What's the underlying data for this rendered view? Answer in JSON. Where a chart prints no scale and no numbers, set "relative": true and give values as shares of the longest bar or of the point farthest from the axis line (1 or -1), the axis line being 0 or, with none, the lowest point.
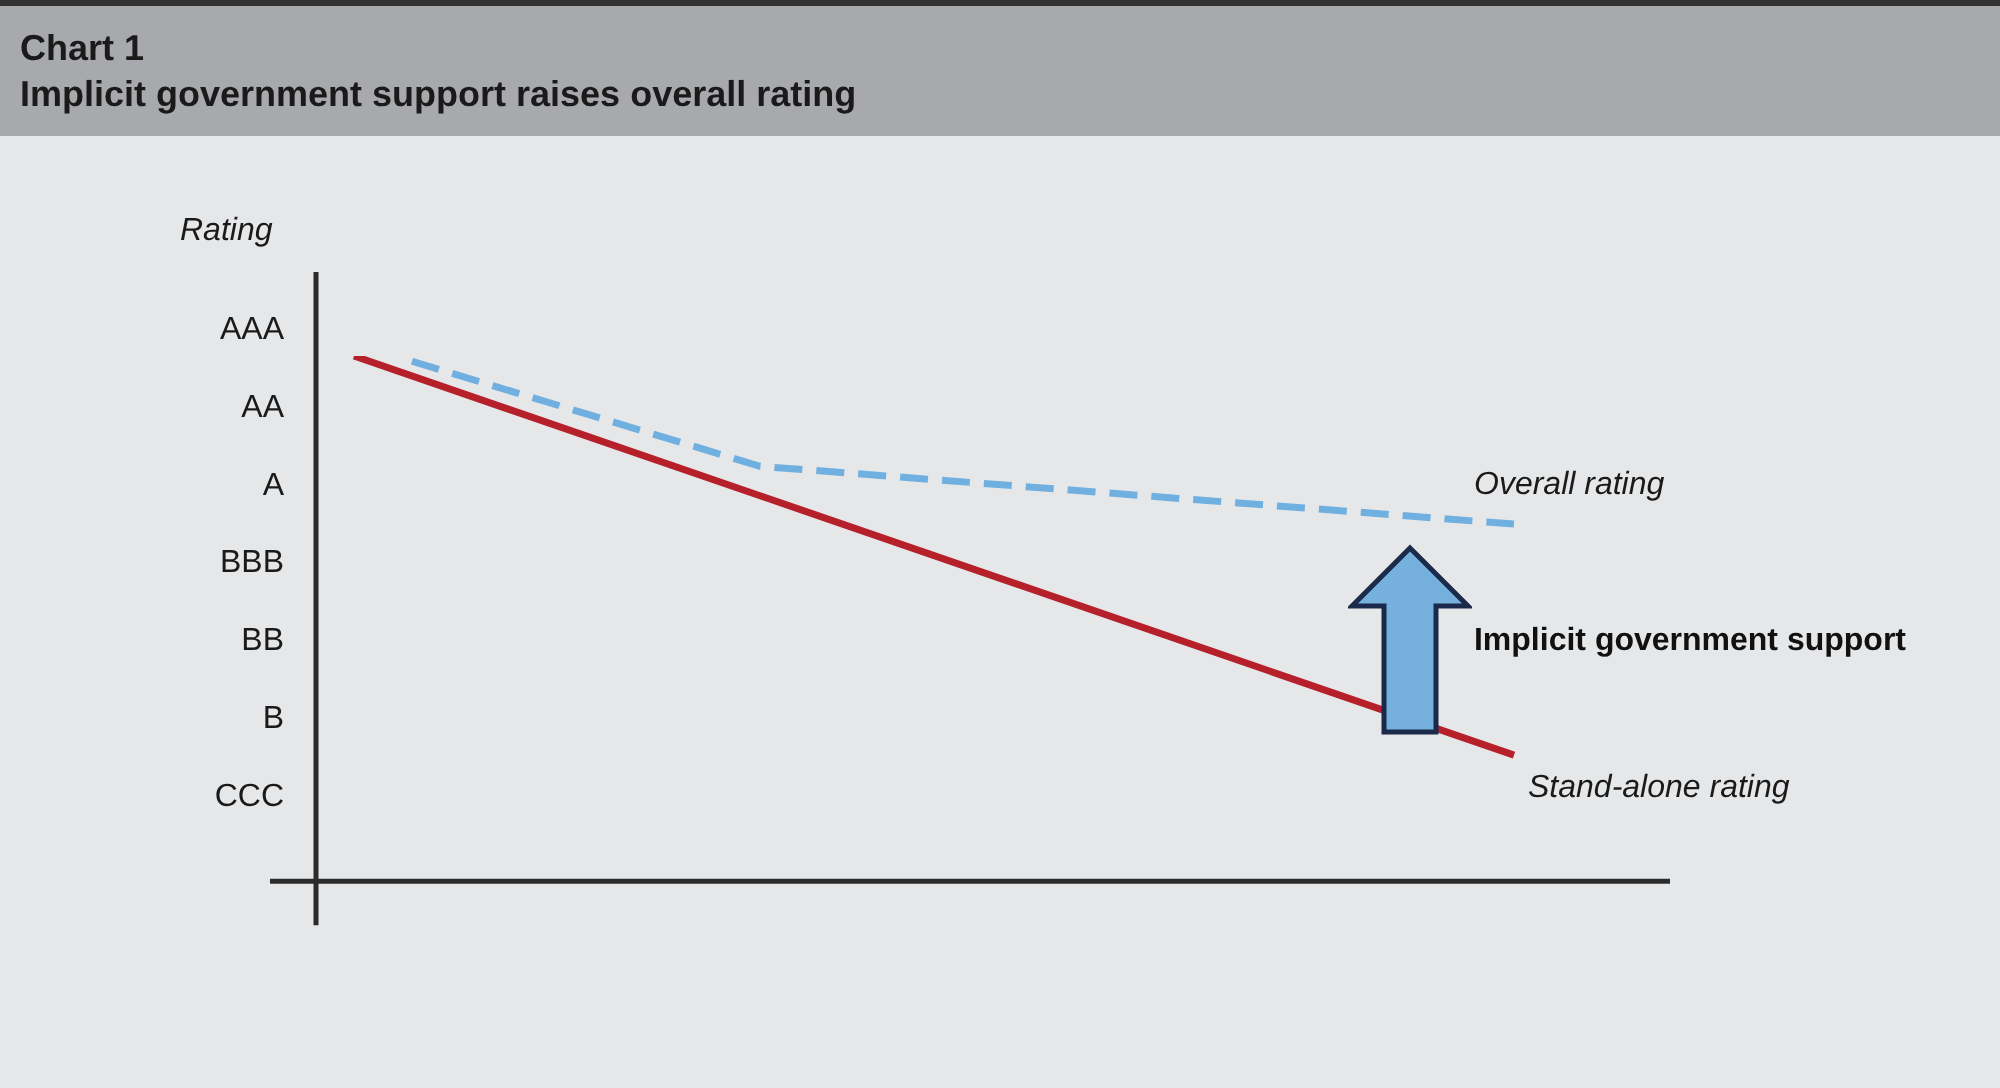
{
  "chart_data": {
    "type": "line",
    "title": "Chart 1",
    "subtitle": "Implicit government support raises overall rating",
    "ylabel": "Rating",
    "annotations": [
      "Implicit government support",
      "AAA",
      "AA",
      "A",
      "BBB",
      "BB",
      "B",
      "CCC"
    ],
    "categories": [
      null,
      null,
      null,
      null,
      null,
      null,
      null,
      null,
      null,
      null,
      null,
      null,
      null,
      null,
      null,
      null,
      null,
      null,
      null,
      null,
      null
    ],
    "relative": true,
    "legend": false,
    "marker": "none",
    "series": [
      {
        "name": "Overall rating",
        "color": "#6fb0e0",
        "line_style": "dashed",
        "values": [
          null,
          0.99,
          null,
          null,
          null,
          null,
          null,
          0.79,
          null,
          null,
          null,
          null,
          null,
          null,
          null,
          null,
          null,
          null,
          null,
          null,
          0.68
        ]
      },
      {
        "name": "Stand-alone rating",
        "color": "#b5202a",
        "line_style": "solid",
        "values": [
          1,
          null,
          null,
          null,
          null,
          null,
          null,
          null,
          null,
          null,
          null,
          null,
          null,
          null,
          null,
          null,
          null,
          null,
          null,
          null,
          0.24
        ]
      }
    ]
  }
}
